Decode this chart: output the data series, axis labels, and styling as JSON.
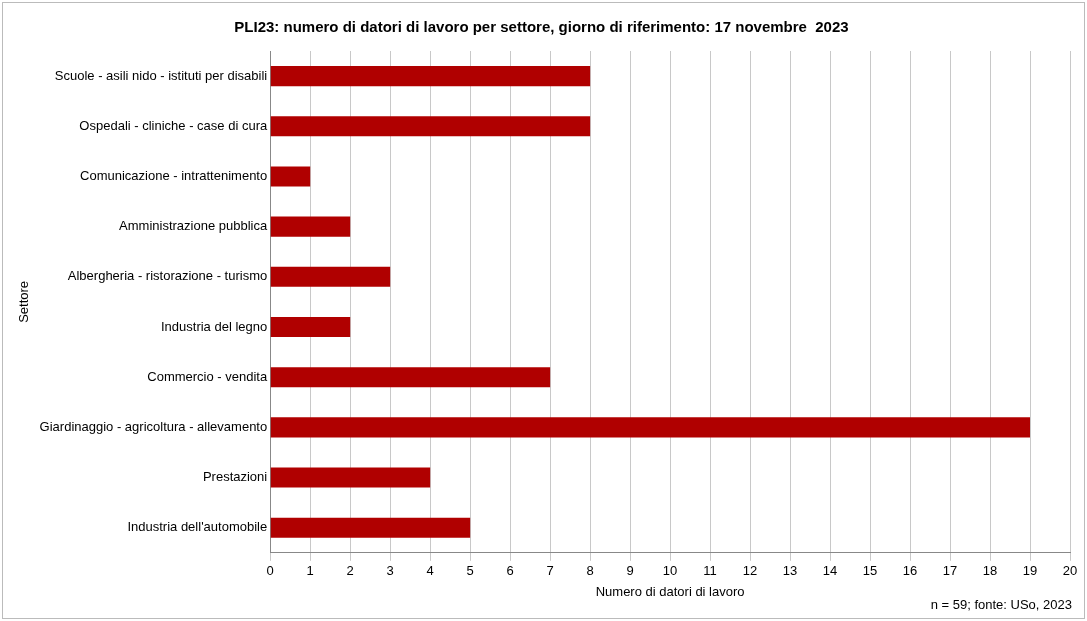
{
  "chart_data": {
    "type": "bar",
    "orientation": "horizontal",
    "title": "PLI23: numero di datori di lavoro per settore, giorno di riferimento: 17 novembre  2023",
    "xlabel": "Numero di datori di lavoro",
    "ylabel": "Settore",
    "categories": [
      "Scuole - asili nido - istituti per disabili",
      "Ospedali - cliniche - case di cura",
      "Comunicazione - intrattenimento",
      "Amministrazione pubblica",
      "Albergheria - ristorazione - turismo",
      "Industria del legno",
      "Commercio - vendita",
      "Giardinaggio - agricoltura - allevamento",
      "Prestazioni",
      "Industria dell'automobile"
    ],
    "values": [
      8,
      8,
      1,
      2,
      3,
      2,
      7,
      19,
      4,
      5
    ],
    "color": "#b00000",
    "xlim": [
      0,
      20
    ],
    "xticks": [
      0,
      1,
      2,
      3,
      4,
      5,
      6,
      7,
      8,
      9,
      10,
      11,
      12,
      13,
      14,
      15,
      16,
      17,
      18,
      19,
      20
    ],
    "grid": "x",
    "legend": false,
    "annotations": [
      "n = 59; fonte: USo, 2023"
    ]
  }
}
